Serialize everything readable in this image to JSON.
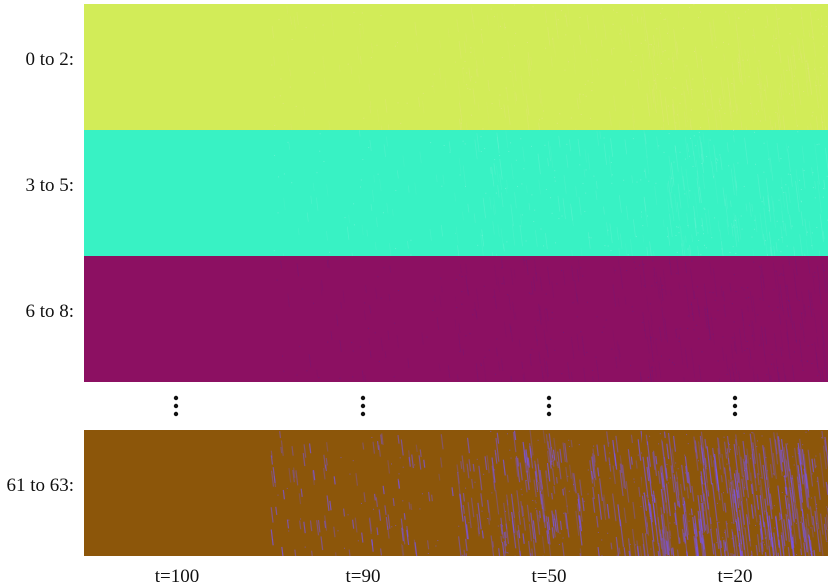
{
  "rows": [
    {
      "label": "0 to 2:",
      "color": "#d2ec58",
      "streak": "#e8e48a"
    },
    {
      "label": "3 to 5:",
      "color": "#38f2c4",
      "streak": "#7af5d8"
    },
    {
      "label": "6 to 8:",
      "color": "#8c1062",
      "streak": "#6a1a80"
    },
    {
      "label": "61 to 63:",
      "color": "#8c560a",
      "streak": "#7b55ee"
    }
  ],
  "columns": [
    {
      "label": "t=100",
      "noise": 0
    },
    {
      "label": "t=90",
      "noise": 0.25
    },
    {
      "label": "t=50",
      "noise": 0.55
    },
    {
      "label": "t=20",
      "noise": 0.9
    }
  ],
  "ellipsis_icon": "vertical-ellipsis-icon"
}
